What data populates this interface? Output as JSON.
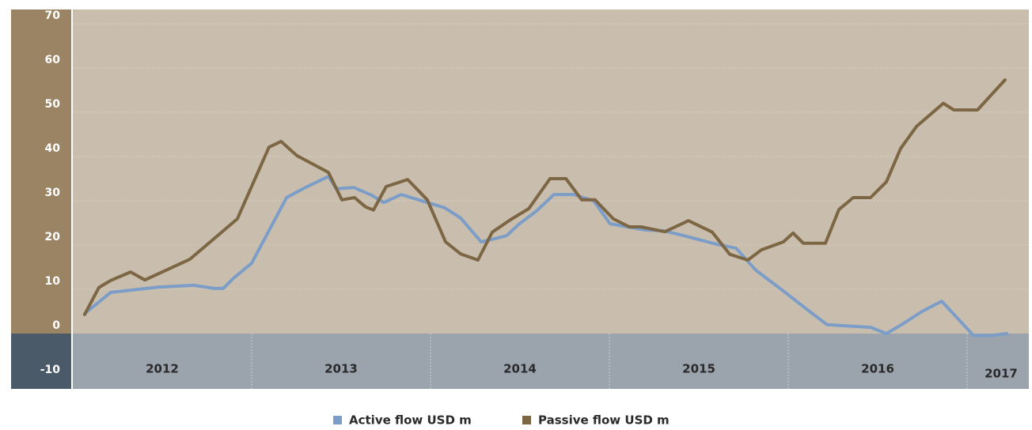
{
  "chart_data": {
    "type": "line",
    "xlim": [
      2012,
      2017.345
    ],
    "ylim": [
      -12.5,
      73.2
    ],
    "yticks": [
      -10,
      0,
      10,
      20,
      30,
      40,
      50,
      60,
      70
    ],
    "xticks": [
      {
        "value": 2012.5,
        "label": "2012"
      },
      {
        "value": 2013.5,
        "label": "2013"
      },
      {
        "value": 2014.5,
        "label": "2014"
      },
      {
        "value": 2015.5,
        "label": "2015"
      },
      {
        "value": 2016.5,
        "label": "2016"
      },
      {
        "value": 2017.19,
        "label": "2017"
      }
    ],
    "x_separators": [
      2013,
      2014,
      2015,
      2016,
      2017
    ],
    "grid": true,
    "legend": "bottom",
    "series": [
      {
        "name": "Active flow USD m",
        "color": "#7b9dc7",
        "x": [
          2012.066,
          2012.212,
          2012.478,
          2012.677,
          2012.788,
          2012.841,
          2012.898,
          2013.0,
          2013.195,
          2013.296,
          2013.429,
          2013.473,
          2013.571,
          2013.673,
          2013.739,
          2013.836,
          2013.982,
          2014.08,
          2014.168,
          2014.283,
          2014.358,
          2014.425,
          2014.491,
          2014.593,
          2014.69,
          2014.801,
          2014.912,
          2015.004,
          2015.199,
          2015.301,
          2015.398,
          2015.597,
          2015.708,
          2015.819,
          2015.973,
          2016.106,
          2016.217,
          2016.46,
          2016.549,
          2016.637,
          2016.748,
          2016.858,
          2017.035,
          2017.124,
          2017.221
        ],
        "values": [
          4.5,
          9.3,
          10.5,
          10.9,
          10.2,
          10.2,
          12.5,
          15.9,
          30.7,
          32.9,
          35.5,
          32.7,
          33,
          31.2,
          29.6,
          31.4,
          29.6,
          28.4,
          26.1,
          20.7,
          21.4,
          22.1,
          24.6,
          27.7,
          31.4,
          31.4,
          30,
          24.8,
          23.4,
          23.2,
          22.3,
          20.2,
          19.3,
          14.3,
          9.6,
          5.4,
          2,
          1.4,
          0,
          2.1,
          5,
          7.3,
          -0.4,
          -0.5,
          0
        ]
      },
      {
        "name": "Passive flow USD m",
        "color": "#7d6644",
        "x": [
          2012.066,
          2012.146,
          2012.212,
          2012.323,
          2012.403,
          2012.655,
          2012.92,
          2013.097,
          2013.164,
          2013.252,
          2013.429,
          2013.504,
          2013.575,
          2013.637,
          2013.681,
          2013.752,
          2013.872,
          2013.982,
          2014.084,
          2014.168,
          2014.265,
          2014.345,
          2014.447,
          2014.549,
          2014.668,
          2014.757,
          2014.845,
          2014.92,
          2015.022,
          2015.111,
          2015.177,
          2015.31,
          2015.442,
          2015.575,
          2015.673,
          2015.774,
          2015.85,
          2015.973,
          2016.027,
          2016.084,
          2016.208,
          2016.283,
          2016.363,
          2016.46,
          2016.549,
          2016.628,
          2016.717,
          2016.867,
          2016.925,
          2017.058,
          2017.212
        ],
        "values": [
          4.3,
          10.4,
          12,
          13.9,
          12.1,
          16.8,
          25.9,
          42.1,
          43.4,
          40.2,
          36.4,
          30.2,
          30.7,
          28.6,
          27.9,
          33.2,
          34.8,
          30.2,
          20.7,
          18,
          16.6,
          22.9,
          25.7,
          28.2,
          35,
          35,
          30.2,
          30.2,
          25.9,
          24.1,
          24.1,
          23,
          25.5,
          22.9,
          17.9,
          16.6,
          18.9,
          20.7,
          22.7,
          20.4,
          20.4,
          28,
          30.7,
          30.7,
          34.3,
          41.8,
          46.8,
          52,
          50.5,
          50.5,
          57.3
        ]
      }
    ]
  }
}
